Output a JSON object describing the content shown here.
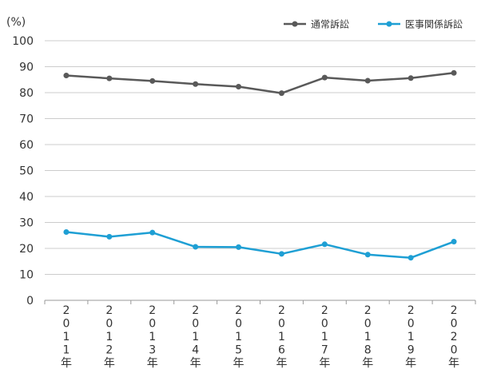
{
  "chart_data": {
    "type": "line",
    "ylabel": "(%)",
    "ylim": [
      0,
      100
    ],
    "yticks": [
      0,
      10,
      20,
      30,
      40,
      50,
      60,
      70,
      80,
      90,
      100
    ],
    "categories": [
      "2011年",
      "2012年",
      "2013年",
      "2014年",
      "2015年",
      "2016年",
      "2017年",
      "2018年",
      "2019年",
      "2020年"
    ],
    "series": [
      {
        "name": "通常訴訟",
        "color": "#595959",
        "values": [
          86.6,
          85.5,
          84.5,
          83.3,
          82.3,
          79.8,
          85.8,
          84.6,
          85.6,
          87.6
        ]
      },
      {
        "name": "医事関係訴訟",
        "color": "#1e9fd4",
        "values": [
          26.3,
          24.5,
          26.1,
          20.6,
          20.5,
          17.9,
          21.6,
          17.6,
          16.4,
          22.6
        ]
      }
    ],
    "legend": "top-right",
    "grid": true
  }
}
